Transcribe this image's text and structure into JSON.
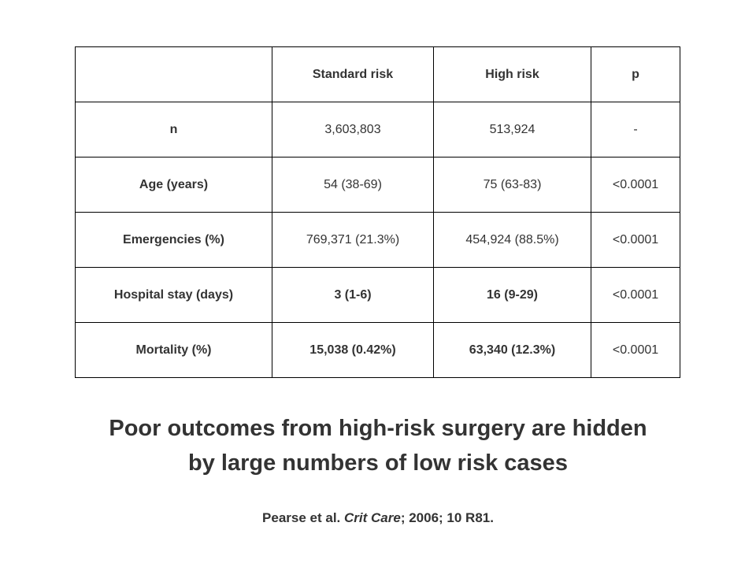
{
  "table": {
    "headers": [
      "",
      "Standard risk",
      "High risk",
      "p"
    ],
    "rows": [
      {
        "label": "n",
        "standard": "3,603,803",
        "high": "513,924",
        "p": "-"
      },
      {
        "label": "Age (years)",
        "standard": "54 (38-69)",
        "high": "75 (63-83)",
        "p": "<0.0001"
      },
      {
        "label": "Emergencies (%)",
        "standard": "769,371 (21.3%)",
        "high": "454,924 (88.5%)",
        "p": "<0.0001"
      },
      {
        "label": "Hospital stay (days)",
        "standard": "3 (1-6)",
        "high": "16 (9-29)",
        "p": "<0.0001"
      },
      {
        "label": "Mortality (%)",
        "standard": "15,038 (0.42%)",
        "high": "63,340 (12.3%)",
        "p": "<0.0001"
      }
    ]
  },
  "headline": {
    "line1": "Poor outcomes from high-risk surgery are hidden",
    "line2": "by large numbers of low risk cases"
  },
  "citation": {
    "authors": "Pearse et al.",
    "journal": "Crit Care",
    "details": "; 2006; 10 R81."
  },
  "colors": {
    "highlight": "#1a8a1a",
    "text": "#333333",
    "border": "#000000"
  }
}
